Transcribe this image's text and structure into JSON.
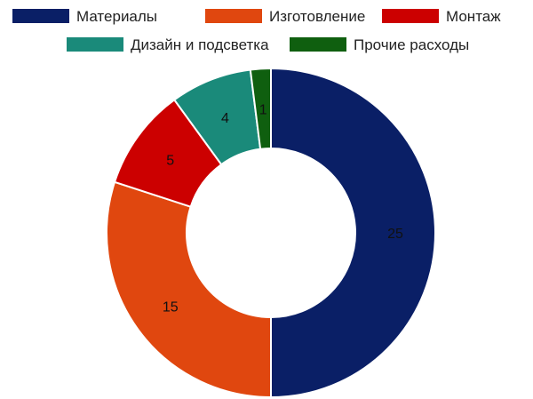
{
  "chart_data": {
    "type": "pie",
    "style": "donut",
    "categories": [
      "Материалы",
      "Изготовление",
      "Монтаж",
      "Дизайн и подсветка",
      "Прочие расходы"
    ],
    "values": [
      25,
      15,
      5,
      4,
      1
    ],
    "data_labels": [
      "25",
      "15",
      "5",
      "4",
      "1"
    ],
    "colors": [
      "#0a1f66",
      "#e0470f",
      "#cc0000",
      "#1a8a7a",
      "#0f5f0f"
    ],
    "legend_position": "top",
    "start_angle": "12 o'clock",
    "direction": "clockwise"
  }
}
